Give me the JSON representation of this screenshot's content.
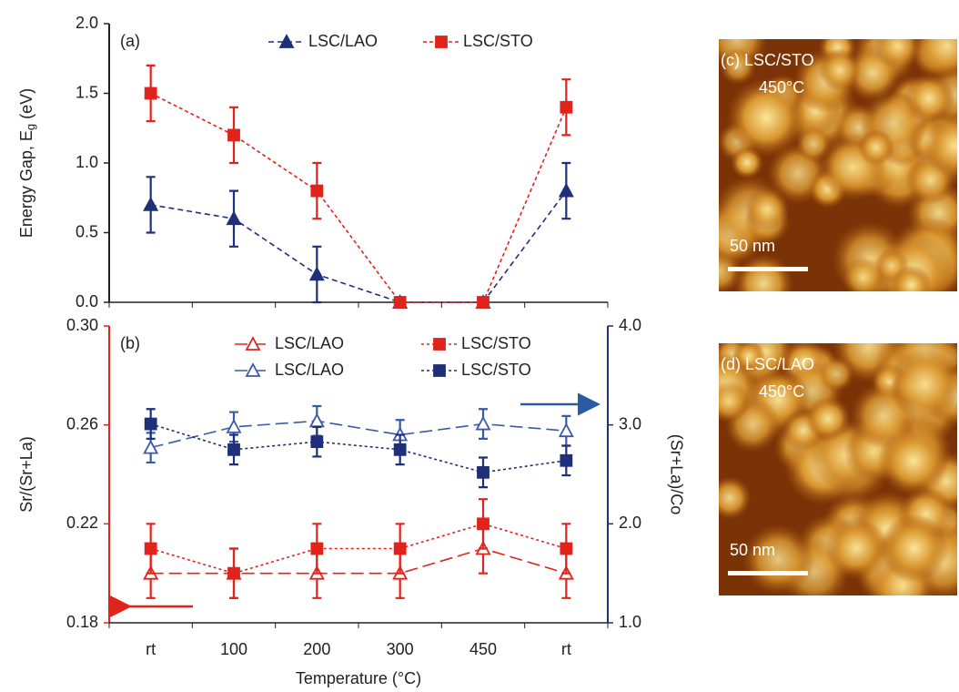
{
  "chart_data": [
    {
      "type": "line",
      "panel": "(a)",
      "y_label": {
        "text": "Energy Gap, E",
        "subscript": "g",
        "suffix": " (eV)"
      },
      "ylim": [
        0,
        2
      ],
      "yticks": [
        {
          "value": 0,
          "label": "0.0"
        },
        {
          "value": 0.5,
          "label": "0.5"
        },
        {
          "value": 1,
          "label": "1.0"
        },
        {
          "value": 1.5,
          "label": "1.5"
        },
        {
          "value": 2,
          "label": "2.0"
        }
      ],
      "series": [
        {
          "name": "LSC/LAO",
          "color": "#1f2f7a",
          "marker": "triangle",
          "filled": true,
          "dash": "6 4",
          "values": [
            0.7,
            0.6,
            0.2,
            0,
            0,
            0.8
          ],
          "errors": [
            0.2,
            0.2,
            0.2,
            null,
            null,
            0.2
          ]
        },
        {
          "name": "LSC/STO",
          "color": "#e0231b",
          "marker": "square",
          "filled": true,
          "dash": "4 3",
          "values": [
            1.5,
            1.2,
            0.8,
            0,
            0,
            1.4
          ],
          "errors": [
            0.2,
            0.2,
            0.2,
            null,
            null,
            0.2
          ]
        }
      ]
    },
    {
      "type": "line",
      "panel": "(b)",
      "x_label": "Temperature (°C)",
      "y_label": "Sr/(Sr+La)",
      "y2_label": "(Sr+La)/Co",
      "categories": [
        "rt",
        "100",
        "200",
        "300",
        "450",
        "rt"
      ],
      "ylim": [
        0.18,
        0.3
      ],
      "yticks": [
        0.18,
        0.22,
        0.26,
        {
          "value": 0.3,
          "label": "0.30"
        }
      ],
      "y2lim": [
        1,
        4
      ],
      "y2ticks": [
        {
          "value": 1,
          "label": "1.0"
        },
        {
          "value": 2,
          "label": "2.0"
        },
        {
          "value": 3,
          "label": "3.0"
        },
        {
          "value": 4,
          "label": "4.0"
        }
      ],
      "y_color": "#e0231b",
      "y2_color": "#1f2f7a",
      "series": [
        {
          "name": "LSC/LAO",
          "color": "#e0231b",
          "marker": "triangle",
          "filled": false,
          "dash": "14 6",
          "values": [
            0.2,
            0.2,
            0.2,
            0.2,
            0.21,
            0.2
          ],
          "errors": [
            0.01,
            0.01,
            0.01,
            0.01,
            0.01,
            0.01
          ]
        },
        {
          "name": "LSC/STO",
          "color": "#e0231b",
          "marker": "square",
          "filled": true,
          "dash": "3 3",
          "values": [
            0.21,
            0.2,
            0.21,
            0.21,
            0.22,
            0.21
          ],
          "errors": [
            0.01,
            0.01,
            0.01,
            0.01,
            0.01,
            0.01
          ]
        },
        {
          "name": "LSC/LAO",
          "color": "#3a5aa8",
          "marker": "triangle",
          "filled": false,
          "dash": "14 6",
          "axis": "y2",
          "values": [
            2.77,
            2.98,
            3.04,
            2.9,
            3.01,
            2.94
          ],
          "errors": [
            0.15,
            0.15,
            0.15,
            0.15,
            0.15,
            0.15
          ]
        },
        {
          "name": "LSC/STO",
          "color": "#1f2f7a",
          "marker": "square",
          "filled": true,
          "dash": "3 3",
          "axis": "y2",
          "values": [
            3.01,
            2.75,
            2.83,
            2.75,
            2.52,
            2.64
          ],
          "errors": [
            0.15,
            0.15,
            0.15,
            0.15,
            0.15,
            0.15
          ]
        }
      ]
    }
  ],
  "images": [
    {
      "label": "(c) LSC/STO",
      "temperature": "450°C",
      "scale": "50 nm"
    },
    {
      "label": "(d) LSC/LAO",
      "temperature": "450°C",
      "scale": "50 nm"
    }
  ]
}
